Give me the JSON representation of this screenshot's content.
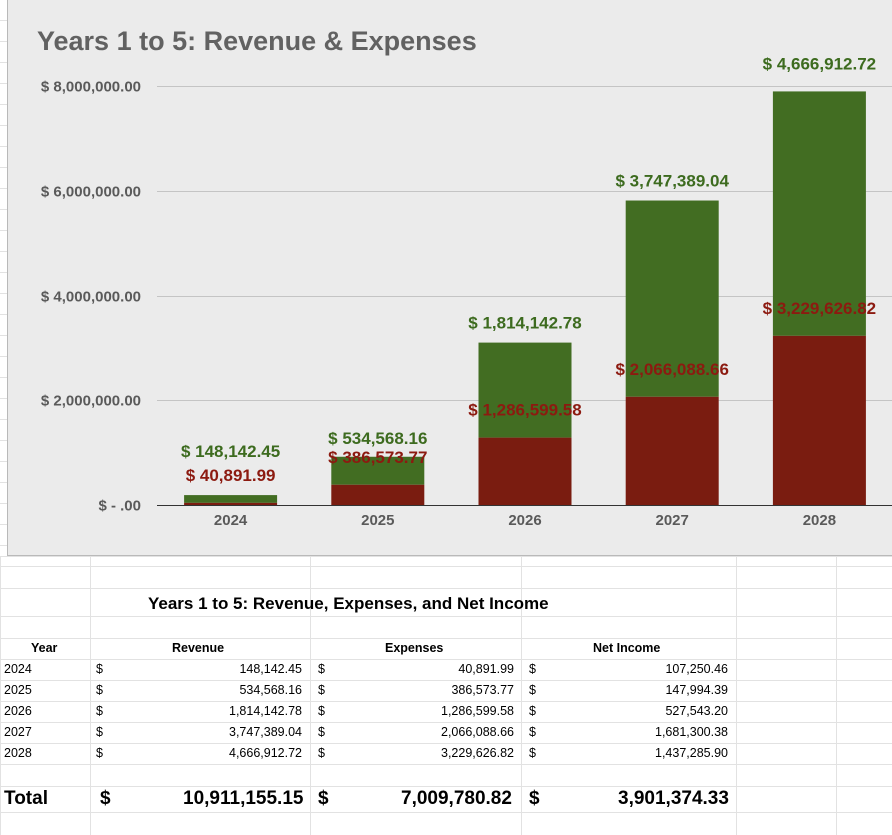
{
  "chart_data": {
    "type": "bar",
    "stacked": true,
    "title": "Years 1 to 5: Revenue & Expenses",
    "categories": [
      "2024",
      "2025",
      "2026",
      "2027",
      "2028"
    ],
    "series": [
      {
        "values": [
          40891.99,
          386573.77,
          1286599.58,
          2066088.66,
          3229626.82
        ],
        "color": "#7a1c10",
        "labels": [
          "$ 40,891.99",
          "$ 386,573.77",
          "$ 1,286,599.58",
          "$ 2,066,088.66",
          "$ 3,229,626.82"
        ]
      },
      {
        "values": [
          148142.45,
          534568.16,
          1814142.78,
          3747389.04,
          4666912.72
        ],
        "color": "#426d22",
        "labels": [
          "$ 148,142.45",
          "$ 534,568.16",
          "$ 1,814,142.78",
          "$ 3,747,389.04",
          "$ 4,666,912.72"
        ]
      }
    ],
    "ylim": [
      0,
      8000000
    ],
    "yticks": [
      {
        "value": 0,
        "label": "$ - .00"
      },
      {
        "value": 2000000,
        "label": "$ 2,000,000.00"
      },
      {
        "value": 4000000,
        "label": "$ 4,000,000.00"
      },
      {
        "value": 6000000,
        "label": "$ 6,000,000.00"
      },
      {
        "value": 8000000,
        "label": "$ 8,000,000.00"
      }
    ],
    "grid": true,
    "label_colors": {
      "expenses": "#8c1a10",
      "revenue": "#3d6b1f"
    }
  },
  "table": {
    "title": "Years 1 to 5: Revenue, Expenses, and Net Income",
    "headers": {
      "year": "Year",
      "revenue": "Revenue",
      "expenses": "Expenses",
      "net": "Net Income"
    },
    "currency": "$",
    "rows": [
      {
        "year": "2024",
        "revenue": "148,142.45",
        "expenses": "40,891.99",
        "net": "107,250.46"
      },
      {
        "year": "2025",
        "revenue": "534,568.16",
        "expenses": "386,573.77",
        "net": "147,994.39"
      },
      {
        "year": "2026",
        "revenue": "1,814,142.78",
        "expenses": "1,286,599.58",
        "net": "527,543.20"
      },
      {
        "year": "2027",
        "revenue": "3,747,389.04",
        "expenses": "2,066,088.66",
        "net": "1,681,300.38"
      },
      {
        "year": "2028",
        "revenue": "4,666,912.72",
        "expenses": "3,229,626.82",
        "net": "1,437,285.90"
      }
    ],
    "total": {
      "label": "Total",
      "revenue": "10,911,155.15",
      "expenses": "7,009,780.82",
      "net": "3,901,374.33"
    }
  }
}
